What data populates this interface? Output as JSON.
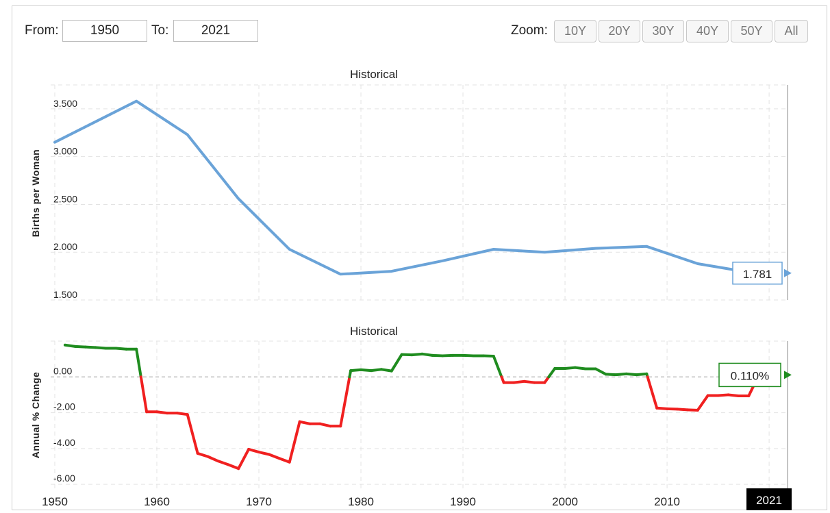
{
  "range": {
    "from_label": "From:",
    "from_value": "1950",
    "to_label": "To:",
    "to_value": "2021"
  },
  "zoom": {
    "label": "Zoom:",
    "buttons": [
      "10Y",
      "20Y",
      "30Y",
      "40Y",
      "50Y",
      "All"
    ]
  },
  "colors": {
    "line": "#6aa3d8",
    "positive": "#1f8c1f",
    "negative": "#f02020",
    "grid": "#e3e3e3"
  },
  "current_year_label": "2021",
  "chart_data": [
    {
      "type": "line",
      "title": "Historical",
      "ylabel": "Births per Woman",
      "ylim": [
        1.5,
        3.75
      ],
      "yticks": [
        "3.500",
        "3.000",
        "2.500",
        "2.000",
        "1.500"
      ],
      "ytick_values": [
        3.5,
        3.0,
        2.5,
        2.0,
        1.5
      ],
      "xlim": [
        1950,
        2021
      ],
      "xticks": [
        1950,
        1960,
        1970,
        1980,
        1990,
        2000,
        2010,
        2021
      ],
      "grid": true,
      "last_value_label": "1.781",
      "x": [
        1950,
        1958,
        1963,
        1968,
        1973,
        1978,
        1983,
        1988,
        1993,
        1998,
        2003,
        2008,
        2013,
        2018,
        2021
      ],
      "y": [
        3.15,
        3.58,
        3.23,
        2.56,
        2.03,
        1.77,
        1.8,
        1.91,
        2.03,
        2.0,
        2.04,
        2.06,
        1.88,
        1.79,
        1.781
      ]
    },
    {
      "type": "line",
      "title": "Historical",
      "ylabel": "Annual % Change",
      "ylim": [
        -6.3,
        2.0
      ],
      "yticks": [
        "0.00",
        "-2.00",
        "-4.00",
        "-6.00"
      ],
      "ytick_values": [
        0,
        -2,
        -4,
        -6
      ],
      "xlim": [
        1950,
        2021
      ],
      "grid": true,
      "colors_by_sign": true,
      "last_value_label": "0.110%",
      "x": [
        1951,
        1952,
        1953,
        1954,
        1955,
        1956,
        1957,
        1958,
        1959,
        1960,
        1961,
        1962,
        1963,
        1964,
        1965,
        1966,
        1967,
        1968,
        1969,
        1970,
        1971,
        1972,
        1973,
        1974,
        1975,
        1976,
        1977,
        1978,
        1979,
        1980,
        1981,
        1982,
        1983,
        1984,
        1985,
        1986,
        1987,
        1988,
        1989,
        1990,
        1991,
        1992,
        1993,
        1994,
        1995,
        1996,
        1997,
        1998,
        1999,
        2000,
        2001,
        2002,
        2003,
        2004,
        2005,
        2006,
        2007,
        2008,
        2009,
        2010,
        2011,
        2012,
        2013,
        2014,
        2015,
        2016,
        2017,
        2018,
        2019,
        2020,
        2021
      ],
      "y": [
        1.78,
        1.7,
        1.67,
        1.64,
        1.6,
        1.6,
        1.55,
        1.55,
        -1.95,
        -1.95,
        -2.02,
        -2.02,
        -2.1,
        -4.27,
        -4.45,
        -4.7,
        -4.9,
        -5.12,
        -4.04,
        -4.2,
        -4.33,
        -4.55,
        -4.76,
        -2.5,
        -2.62,
        -2.62,
        -2.75,
        -2.75,
        0.35,
        0.4,
        0.35,
        0.42,
        0.33,
        1.25,
        1.23,
        1.28,
        1.2,
        1.18,
        1.2,
        1.2,
        1.18,
        1.18,
        1.16,
        -0.32,
        -0.32,
        -0.25,
        -0.32,
        -0.32,
        0.47,
        0.47,
        0.52,
        0.45,
        0.45,
        0.15,
        0.12,
        0.17,
        0.12,
        0.17,
        -1.74,
        -1.78,
        -1.8,
        -1.84,
        -1.86,
        -1.04,
        -1.04,
        -1.0,
        -1.06,
        -1.06,
        0.11,
        0.11,
        0.11
      ]
    }
  ]
}
